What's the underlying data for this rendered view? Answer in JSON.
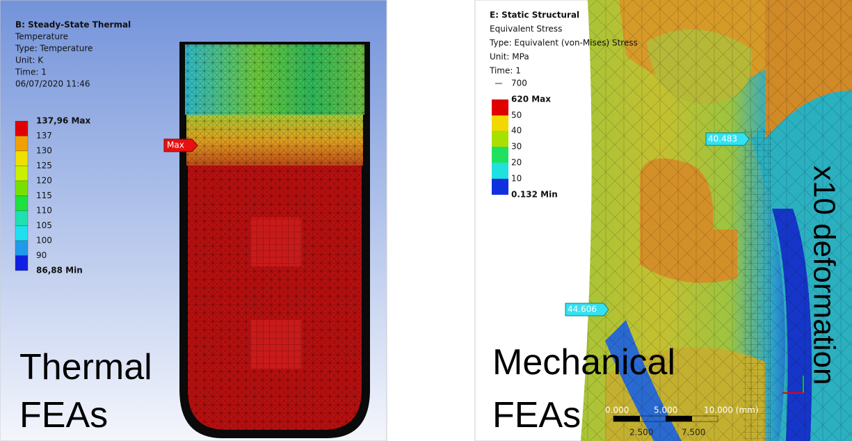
{
  "thermal": {
    "header": [
      "B: Steady-State Thermal",
      "Temperature",
      "Type: Temperature",
      "Unit: K",
      "Time: 1",
      "06/07/2020 11:46"
    ],
    "legend": [
      "137,96 Max",
      "137",
      "130",
      "125",
      "120",
      "115",
      "110",
      "105",
      "100",
      "90",
      "86,88 Min"
    ],
    "probe": "Max",
    "caption": [
      "Thermal",
      "FEAs"
    ]
  },
  "structural": {
    "header": [
      "E: Static Structural",
      "Equivalent Stress",
      "Type: Equivalent (von-Mises) Stress",
      "Unit: MPa",
      "Time: 1"
    ],
    "legend": [
      "700",
      "620 Max",
      "50",
      "40",
      "30",
      "20",
      "10",
      "0.132 Min"
    ],
    "probes": [
      "40.483",
      "44.606"
    ],
    "deformation": "x10 deformation",
    "caption": [
      "Mechanical",
      "FEAs"
    ],
    "scale_bar": {
      "top": [
        "0.000",
        "5.000",
        "10.000 (mm)"
      ],
      "bottom": [
        "2.500",
        "7.500"
      ]
    }
  }
}
